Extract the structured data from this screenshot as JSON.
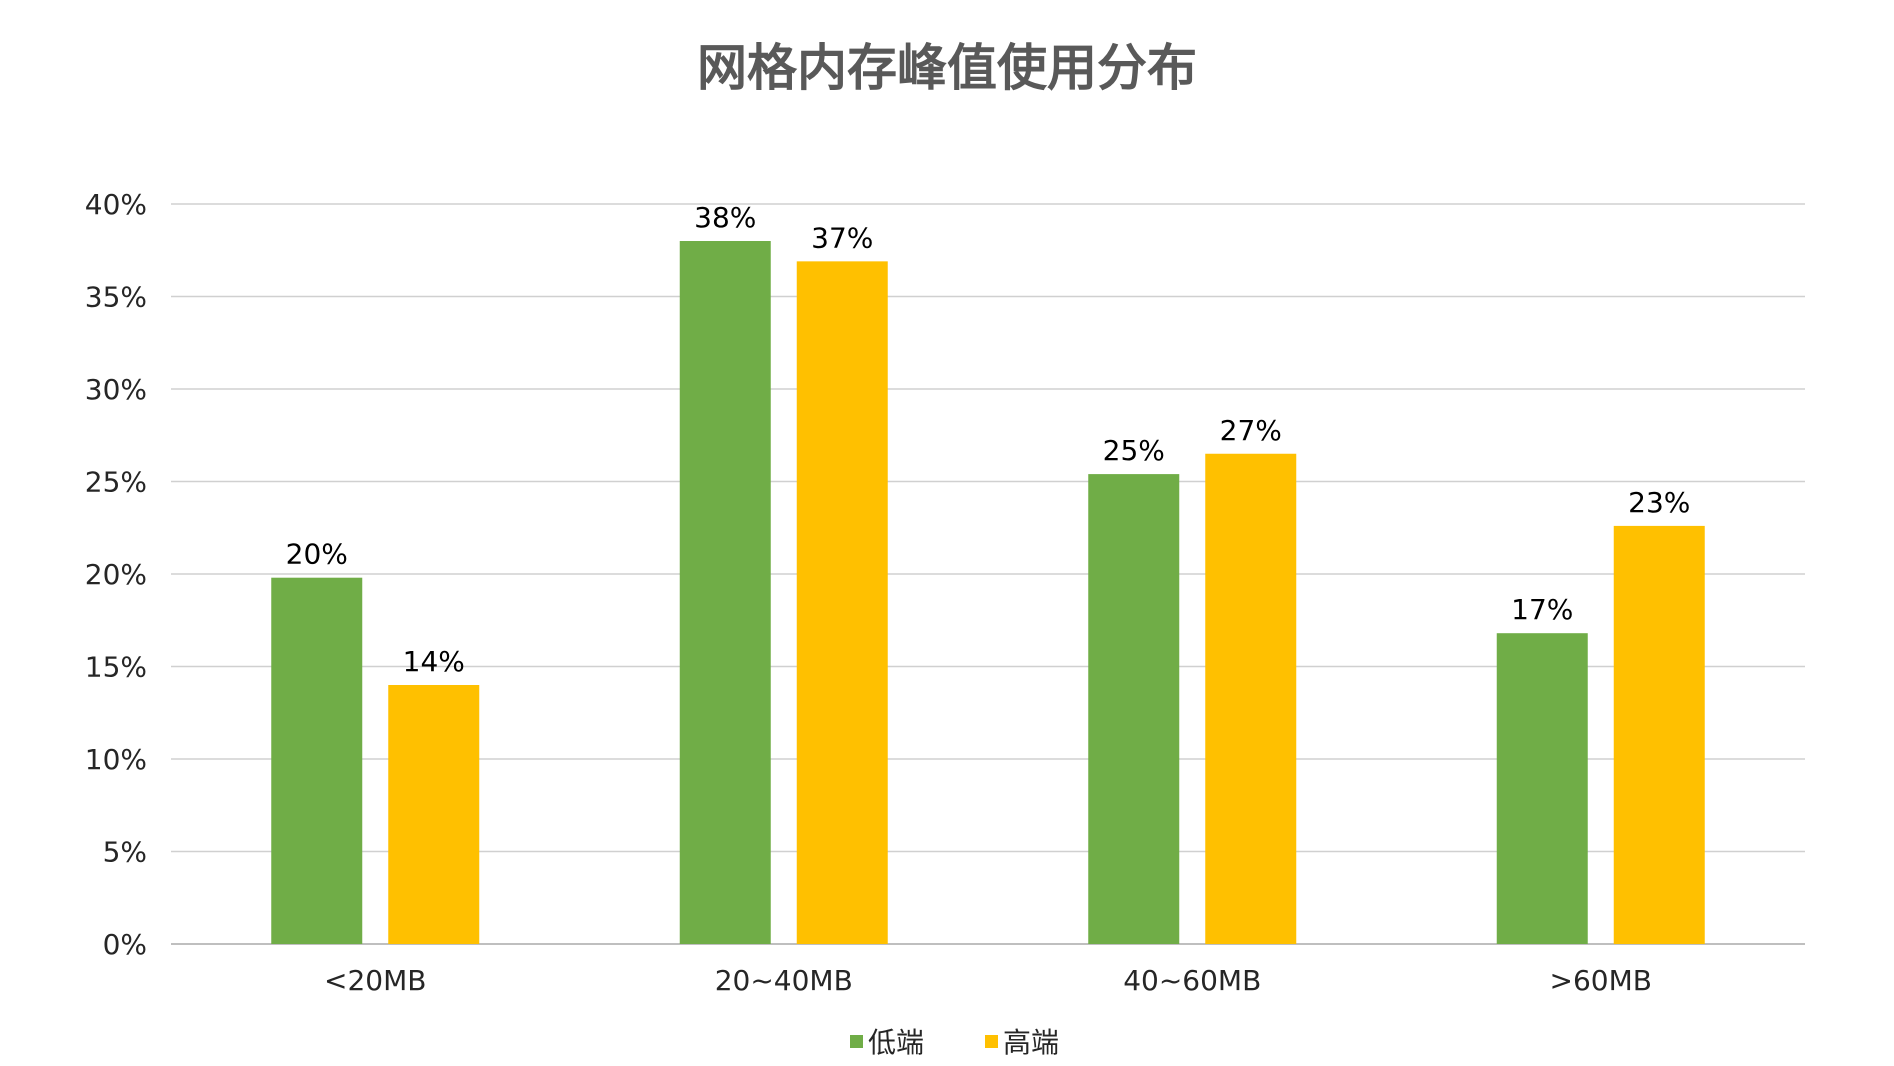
{
  "chart_data": {
    "type": "bar",
    "title": "网格内存峰值使用分布",
    "xlabel": "",
    "ylabel": "",
    "categories": [
      "<20MB",
      "20~40MB",
      "40~60MB",
      ">60MB"
    ],
    "series": [
      {
        "name": "低端",
        "color": "#70AD47",
        "values": [
          19.8,
          38.0,
          25.4,
          16.8
        ],
        "labels": [
          "20%",
          "38%",
          "25%",
          "17%"
        ]
      },
      {
        "name": "高端",
        "color": "#FFC000",
        "values": [
          14.0,
          36.9,
          26.5,
          22.6
        ],
        "labels": [
          "14%",
          "37%",
          "27%",
          "23%"
        ]
      }
    ],
    "ylim": [
      0,
      40
    ],
    "yticks": [
      0,
      5,
      10,
      15,
      20,
      25,
      30,
      35,
      40
    ],
    "ytick_labels": [
      "0%",
      "5%",
      "10%",
      "15%",
      "20%",
      "25%",
      "30%",
      "35%",
      "40%"
    ],
    "grid": true,
    "legend_position": "bottom"
  }
}
